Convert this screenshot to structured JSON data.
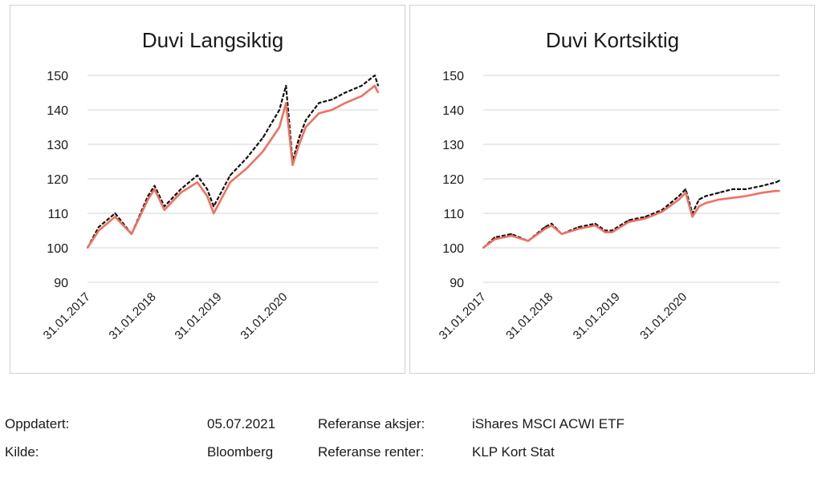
{
  "chart_data": [
    {
      "type": "line",
      "title": "Duvi Langsiktig",
      "xlabel": "",
      "ylabel": "",
      "ylim": [
        90,
        150
      ],
      "yticks": [
        90,
        100,
        110,
        120,
        130,
        140,
        150
      ],
      "xticks": [
        "31.01.2017",
        "31.01.2018",
        "31.01.2019",
        "31.01.2020"
      ],
      "x": [
        2017.08,
        2017.25,
        2017.5,
        2017.75,
        2018.0,
        2018.1,
        2018.25,
        2018.5,
        2018.75,
        2018.9,
        2019.0,
        2019.25,
        2019.5,
        2019.75,
        2020.0,
        2020.1,
        2020.2,
        2020.3,
        2020.4,
        2020.6,
        2020.8,
        2021.0,
        2021.25,
        2021.45,
        2021.5
      ],
      "series": [
        {
          "color": "#111111",
          "values": [
            100,
            106,
            110,
            104,
            115,
            118,
            112,
            117,
            121,
            117,
            112,
            121,
            126,
            132,
            140,
            147,
            125,
            132,
            137,
            142,
            143,
            145,
            147,
            150,
            147
          ]
        },
        {
          "color": "#f07060",
          "values": [
            100,
            105,
            109,
            104,
            114,
            117,
            111,
            116,
            119,
            115,
            110,
            119,
            123,
            128,
            135,
            142,
            124,
            130,
            135,
            139,
            140,
            142,
            144,
            147,
            145
          ]
        }
      ],
      "grid": true,
      "legend": "none"
    },
    {
      "type": "line",
      "title": "Duvi Kortsiktig",
      "xlabel": "",
      "ylabel": "",
      "ylim": [
        90,
        150
      ],
      "yticks": [
        90,
        100,
        110,
        120,
        130,
        140,
        150
      ],
      "xticks": [
        "31.01.2017",
        "31.01.2018",
        "31.01.2019",
        "31.01.2020"
      ],
      "x": [
        2017.08,
        2017.25,
        2017.5,
        2017.75,
        2018.0,
        2018.1,
        2018.25,
        2018.5,
        2018.75,
        2018.9,
        2019.0,
        2019.25,
        2019.5,
        2019.75,
        2020.0,
        2020.1,
        2020.2,
        2020.3,
        2020.4,
        2020.6,
        2020.8,
        2021.0,
        2021.25,
        2021.45,
        2021.5
      ],
      "series": [
        {
          "color": "#111111",
          "values": [
            100,
            103,
            104,
            102,
            106,
            107,
            104,
            106,
            107,
            105,
            105,
            108,
            109,
            111,
            115,
            117,
            110,
            114,
            115,
            116,
            117,
            117,
            118,
            119,
            119.5
          ]
        },
        {
          "color": "#f07060",
          "values": [
            100,
            102.5,
            103.5,
            102,
            105.5,
            106.5,
            104,
            105.5,
            106.5,
            104.5,
            104.5,
            107.5,
            108.5,
            110.5,
            114,
            116,
            109,
            112,
            113,
            114,
            114.5,
            115,
            116,
            116.5,
            116.5
          ]
        }
      ],
      "grid": true,
      "legend": "none"
    }
  ],
  "footer": {
    "updated_label": "Oppdatert:",
    "updated_value": "05.07.2021",
    "ref_stocks_label": "Referanse aksjer:",
    "ref_stocks_value": "iShares MSCI ACWI ETF",
    "source_label": "Kilde:",
    "source_value": "Bloomberg",
    "ref_rates_label": "Referanse renter:",
    "ref_rates_value": "KLP Kort Stat"
  }
}
